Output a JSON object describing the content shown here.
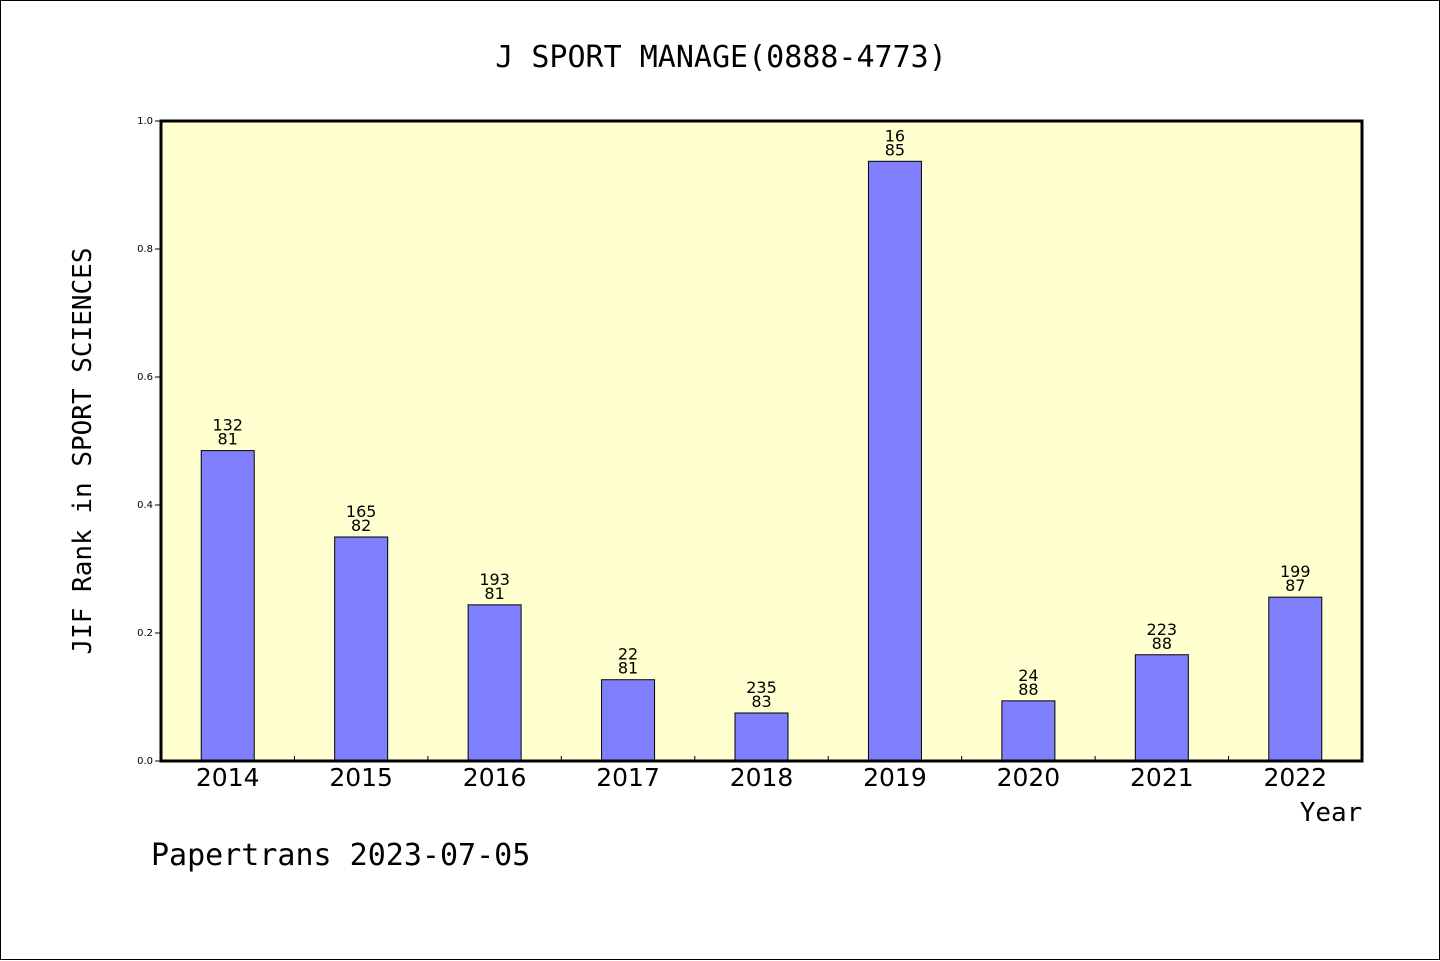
{
  "chart_data": {
    "type": "bar",
    "title": "J SPORT MANAGE(0888-4773)",
    "xlabel": "Year",
    "ylabel": "JIF Rank in SPORT SCIENCES",
    "ylim": [
      0,
      1.0
    ],
    "yticks": [
      "0.0",
      "0.2",
      "0.4",
      "0.6",
      "0.8",
      "1.0"
    ],
    "grid": false,
    "categories": [
      "2014",
      "2015",
      "2016",
      "2017",
      "2018",
      "2019",
      "2020",
      "2021",
      "2022"
    ],
    "values": [
      0.485,
      0.35,
      0.244,
      0.127,
      0.075,
      0.937,
      0.094,
      0.166,
      0.256
    ],
    "labels_top": [
      "132",
      "165",
      "193",
      "22",
      "235",
      "16",
      "24",
      "223",
      "199"
    ],
    "labels_bottom": [
      "81",
      "82",
      "81",
      "81",
      "83",
      "85",
      "88",
      "88",
      "87"
    ],
    "colors": {
      "bar": "#8080ff",
      "plot_bg": "#ffffd0"
    }
  },
  "footer": "Papertrans 2023-07-05"
}
